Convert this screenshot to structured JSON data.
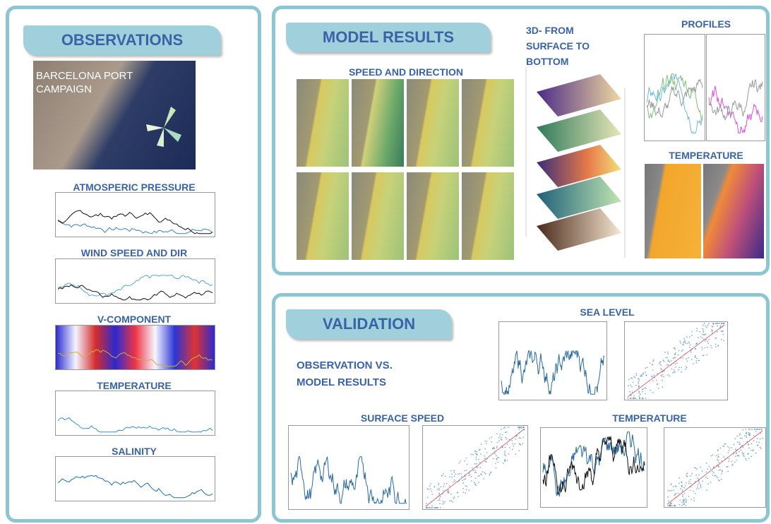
{
  "observations": {
    "title": "OBSERVATIONS",
    "map_label": "BARCELONA PORT CAMPAIGN",
    "charts": [
      "ATMOSPERIC PRESSURE",
      "WIND SPEED AND DIR",
      "V-COMPONENT",
      "TEMPERATURE",
      "SALINITY"
    ]
  },
  "model_results": {
    "title": "MODEL RESULTS",
    "speed_title": "SPEED AND DIRECTION",
    "volume_title": "3D- FROM SURFACE TO BOTTOM",
    "profiles_title": "PROFILES",
    "temperature_title": "TEMPERATURE"
  },
  "validation": {
    "title": "VALIDATION",
    "subtitle": "OBSERVATION VS. MODEL RESULTS",
    "sea_level_title": "SEA LEVEL",
    "surface_speed_title": "SURFACE SPEED",
    "temperature_title": "TEMPERATURE"
  }
}
